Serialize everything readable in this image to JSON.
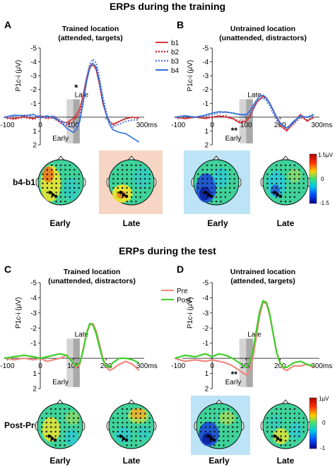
{
  "figure": {
    "section_top_title": "ERPs during the training",
    "section_bottom_title": "ERPs during the test",
    "ylabel": "P1c-i (μV)",
    "x_unit_label": "300ms",
    "window_labels": {
      "early": "Early",
      "late": "Late"
    },
    "colorbar_top": {
      "max": "1.5μV",
      "mid": "0",
      "min": "-1.5"
    },
    "colorbar_bottom": {
      "max": "1μV",
      "mid": "0",
      "min": "-1"
    },
    "row_label_top": "b4-b1",
    "row_label_bottom": "Post-Pre",
    "topo_labels": {
      "early": "Early",
      "late": "Late"
    },
    "colors": {
      "b1": "#d9363e",
      "b2": "#c0303a",
      "b3": "#5b7fd8",
      "b4": "#2f6fd8",
      "pre": "#f08a7e",
      "post": "#3ecf2a",
      "early_window": "#d4d4d4",
      "late_window": "#a9a9a9",
      "highlight_red": "#f7d5c4",
      "highlight_blue": "#bde3f6"
    }
  },
  "chart_data": [
    {
      "panel": "A",
      "type": "line",
      "title_line1": "Trained location",
      "title_line2": "(attended, targets)",
      "xlim": [
        -100,
        300
      ],
      "ylim": [
        -5,
        2
      ],
      "y_inverted": true,
      "x_ticks": [
        "-100",
        "0",
        "100"
      ],
      "y_ticks": [
        "-5",
        "-4",
        "-3",
        "-2",
        "-1",
        "0",
        "1",
        "2"
      ],
      "annotation": "*",
      "annotation_position": "late",
      "legend_title": "",
      "series": [
        {
          "name": "b1",
          "style": "solid",
          "color": "#d9363e",
          "x": [
            -110,
            -80,
            -50,
            -20,
            0,
            20,
            40,
            60,
            80,
            100,
            110,
            120,
            130,
            140,
            150,
            160,
            170,
            180,
            190,
            200,
            210,
            220,
            240,
            260,
            280,
            300
          ],
          "y": [
            0,
            0.1,
            -0.05,
            0.1,
            -0.1,
            0.05,
            -0.05,
            0.3,
            0.4,
            0.1,
            -0.2,
            -0.6,
            -1.6,
            -2.8,
            -3.7,
            -3.9,
            -3.4,
            -2.3,
            -1,
            -0.2,
            0.3,
            0.5,
            0.3,
            0.1,
            0,
            0.05
          ]
        },
        {
          "name": "b2",
          "style": "dotted",
          "color": "#c0303a",
          "x": [
            -110,
            -80,
            -50,
            -20,
            0,
            20,
            40,
            60,
            80,
            100,
            110,
            120,
            130,
            140,
            150,
            160,
            170,
            180,
            190,
            200,
            210,
            220,
            240,
            260,
            280,
            300
          ],
          "y": [
            0,
            0.15,
            0,
            0.15,
            -0.05,
            0.1,
            0.05,
            0.4,
            0.6,
            0.3,
            0,
            -0.3,
            -1.4,
            -2.6,
            -3.5,
            -3.8,
            -3.5,
            -2.5,
            -1.2,
            -0.3,
            0.3,
            0.6,
            0.3,
            0.1,
            0,
            0.1
          ]
        },
        {
          "name": "b3",
          "style": "dotted",
          "color": "#5b7fd8",
          "x": [
            -110,
            -80,
            -50,
            -20,
            0,
            20,
            40,
            60,
            80,
            100,
            110,
            120,
            130,
            140,
            150,
            160,
            170,
            180,
            190,
            200,
            210,
            220,
            240,
            260,
            280,
            300
          ],
          "y": [
            0,
            -0.1,
            -0.15,
            0,
            -0.1,
            0,
            -0.1,
            0.2,
            0.5,
            0.8,
            0.6,
            0.2,
            -1.2,
            -2.7,
            -3.8,
            -4.2,
            -3.9,
            -2.8,
            -1.5,
            -0.4,
            0.3,
            0.7,
            0.5,
            0.3,
            0.2,
            0.2
          ]
        },
        {
          "name": "b4",
          "style": "solid",
          "color": "#2f6fd8",
          "x": [
            -110,
            -80,
            -50,
            -20,
            0,
            20,
            40,
            60,
            80,
            100,
            110,
            120,
            130,
            140,
            150,
            160,
            170,
            180,
            190,
            200,
            210,
            220,
            240,
            260,
            280,
            300
          ],
          "y": [
            0,
            -0.15,
            -0.1,
            -0.2,
            0.05,
            -0.1,
            0.05,
            0.3,
            0.8,
            1.1,
            0.9,
            0.3,
            -1,
            -2.5,
            -3.6,
            -3.9,
            -3.6,
            -2.5,
            -1.2,
            -0.2,
            0.5,
            0.9,
            1.1,
            1.2,
            1.5,
            1.8
          ]
        }
      ]
    },
    {
      "panel": "B",
      "type": "line",
      "title_line1": "Untrained location",
      "title_line2": "(unattended, distractors)",
      "xlim": [
        -100,
        300
      ],
      "ylim": [
        -5,
        2
      ],
      "y_inverted": true,
      "x_ticks": [
        "-100",
        "0",
        "100",
        "200"
      ],
      "y_ticks": [
        "-5",
        "-4",
        "-3",
        "-2",
        "-1",
        "0",
        "1",
        "2"
      ],
      "annotation": "**",
      "annotation_position": "early",
      "series": [
        {
          "name": "b1",
          "style": "solid",
          "color": "#d9363e",
          "x": [
            -110,
            -80,
            -50,
            -20,
            0,
            20,
            40,
            60,
            80,
            100,
            110,
            120,
            130,
            140,
            150,
            160,
            170,
            180,
            190,
            200,
            220,
            240,
            260,
            280,
            300
          ],
          "y": [
            0,
            0.1,
            0,
            0.1,
            0,
            -0.1,
            0,
            0.1,
            0.4,
            0.3,
            0,
            -0.5,
            -1,
            -1.3,
            -1.5,
            -1.4,
            -1,
            -0.5,
            0,
            0.6,
            1,
            0.4,
            -0.2,
            0.3,
            0
          ]
        },
        {
          "name": "b2",
          "style": "dotted",
          "color": "#c0303a",
          "x": [
            -110,
            -80,
            -50,
            -20,
            0,
            20,
            40,
            60,
            80,
            100,
            110,
            120,
            130,
            140,
            150,
            160,
            170,
            180,
            190,
            200,
            220,
            240,
            260,
            280,
            300
          ],
          "y": [
            0,
            0.1,
            0,
            0,
            0,
            -0.05,
            -0.1,
            0.1,
            0.3,
            0.3,
            0,
            -0.6,
            -1.1,
            -1.3,
            -1.5,
            -1.3,
            -1,
            -0.5,
            0,
            0.4,
            0.9,
            0.5,
            0,
            0.2,
            0
          ]
        },
        {
          "name": "b3",
          "style": "dotted",
          "color": "#5b7fd8",
          "x": [
            -110,
            -80,
            -50,
            -20,
            0,
            20,
            40,
            60,
            80,
            100,
            110,
            120,
            130,
            140,
            150,
            160,
            170,
            180,
            190,
            200,
            220,
            240,
            260,
            280,
            300
          ],
          "y": [
            0,
            -0.1,
            0,
            -0.1,
            -0.2,
            -0.3,
            -0.4,
            -0.3,
            -0.2,
            -0.1,
            -0.2,
            -0.5,
            -1,
            -1.3,
            -1.4,
            -1.2,
            -0.8,
            -0.3,
            0.2,
            0.5,
            0.8,
            0.4,
            0,
            0,
            -0.1
          ]
        },
        {
          "name": "b4",
          "style": "solid",
          "color": "#2f6fd8",
          "x": [
            -110,
            -80,
            -50,
            -20,
            0,
            20,
            40,
            60,
            80,
            100,
            110,
            120,
            130,
            140,
            150,
            160,
            170,
            180,
            190,
            200,
            220,
            240,
            260,
            280,
            300
          ],
          "y": [
            0,
            -0.1,
            0,
            -0.15,
            -0.3,
            -0.4,
            -0.35,
            -0.3,
            -0.2,
            -0.2,
            -0.4,
            -0.8,
            -1.2,
            -1.5,
            -1.6,
            -1.4,
            -1,
            -0.5,
            0,
            0.4,
            0.8,
            0.3,
            -0.1,
            0,
            -0.2
          ]
        }
      ]
    },
    {
      "panel": "C",
      "type": "line",
      "title_line1": "Trained location",
      "title_line2": "(unattended, distractors)",
      "xlim": [
        -100,
        300
      ],
      "ylim": [
        -5,
        2
      ],
      "y_inverted": true,
      "x_ticks": [
        "-100",
        "0",
        "100",
        "200"
      ],
      "y_ticks": [
        "-5",
        "-4",
        "-3",
        "-2",
        "-1",
        "0",
        "1",
        "2"
      ],
      "annotation": "",
      "series": [
        {
          "name": "Pre",
          "style": "solid",
          "color": "#f08a7e",
          "x": [
            -110,
            -80,
            -50,
            -20,
            0,
            20,
            40,
            60,
            80,
            100,
            110,
            120,
            130,
            140,
            150,
            160,
            170,
            180,
            190,
            200,
            210,
            220,
            240,
            260,
            280,
            300
          ],
          "y": [
            0,
            0.1,
            0,
            0.1,
            0,
            0.2,
            0.1,
            0,
            -0.2,
            0.3,
            0.6,
            0.4,
            -0.6,
            -1.6,
            -2.2,
            -2.3,
            -1.8,
            -0.9,
            0,
            0.5,
            0.8,
            0.7,
            0.4,
            0.2,
            0.4,
            0.8
          ]
        },
        {
          "name": "Post",
          "style": "solid",
          "color": "#3ecf2a",
          "x": [
            -110,
            -80,
            -50,
            -20,
            0,
            20,
            40,
            60,
            80,
            100,
            110,
            120,
            130,
            140,
            150,
            160,
            170,
            180,
            190,
            200,
            210,
            220,
            240,
            260,
            280,
            300
          ],
          "y": [
            0,
            -0.1,
            -0.2,
            -0.1,
            0,
            -0.1,
            -0.2,
            -0.3,
            -0.2,
            0.3,
            0.5,
            0.3,
            -0.5,
            -1.6,
            -2.3,
            -2.2,
            -1.6,
            -0.7,
            0.1,
            0.5,
            0.6,
            0.3,
            0,
            0,
            0.1,
            0.3
          ]
        }
      ]
    },
    {
      "panel": "D",
      "type": "line",
      "title_line1": "Untrained location",
      "title_line2": "(attended, targets)",
      "xlim": [
        -100,
        300
      ],
      "ylim": [
        -5,
        2
      ],
      "y_inverted": true,
      "x_ticks": [
        "-100",
        "0",
        "100",
        "200"
      ],
      "y_ticks": [
        "-5",
        "-4",
        "-3",
        "-2",
        "-1",
        "0",
        "1",
        "2"
      ],
      "annotation": "**",
      "annotation_position": "early",
      "series": [
        {
          "name": "Pre",
          "style": "solid",
          "color": "#f08a7e",
          "x": [
            -110,
            -80,
            -50,
            -20,
            0,
            20,
            40,
            60,
            80,
            100,
            110,
            120,
            130,
            140,
            150,
            160,
            170,
            180,
            190,
            200,
            210,
            220,
            240,
            260,
            280,
            300
          ],
          "y": [
            0,
            0.2,
            0.1,
            0.2,
            0.1,
            0.2,
            0.3,
            0.5,
            0.8,
            1.1,
            0.9,
            0,
            -1.4,
            -2.8,
            -3.7,
            -3.6,
            -2.8,
            -1.6,
            -0.4,
            0.3,
            0.7,
            0.8,
            0.5,
            0.5,
            0.4,
            0.6
          ]
        },
        {
          "name": "Post",
          "style": "solid",
          "color": "#3ecf2a",
          "x": [
            -110,
            -80,
            -50,
            -20,
            0,
            20,
            40,
            60,
            80,
            100,
            110,
            120,
            130,
            140,
            150,
            160,
            170,
            180,
            190,
            200,
            210,
            220,
            240,
            260,
            280,
            300
          ],
          "y": [
            0,
            -0.2,
            -0.1,
            -0.3,
            -0.1,
            -0.3,
            -0.2,
            0,
            0.3,
            0.6,
            0.3,
            -0.5,
            -1.8,
            -3.1,
            -3.8,
            -3.7,
            -2.9,
            -1.6,
            -0.4,
            0.3,
            0.6,
            0.6,
            0.3,
            0.2,
            0.4,
            0.5
          ]
        }
      ]
    }
  ]
}
